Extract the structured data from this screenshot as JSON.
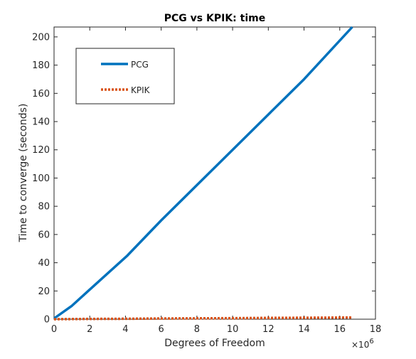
{
  "chart_data": {
    "type": "line",
    "title": "PCG vs KPIK: time",
    "xlabel": "Degrees of Freedom",
    "ylabel": "Time to converge (seconds)",
    "x_multiplier": "×10",
    "x_multiplier_exponent": "6",
    "xlim": [
      0,
      18
    ],
    "ylim": [
      0,
      207
    ],
    "x_ticks": [
      0,
      2,
      4,
      6,
      8,
      10,
      12,
      14,
      16,
      18
    ],
    "y_ticks": [
      0,
      20,
      40,
      60,
      80,
      100,
      120,
      140,
      160,
      180,
      200
    ],
    "grid": false,
    "legend_position": "top-left",
    "series": [
      {
        "name": "PCG",
        "color": "#0072BD",
        "style": "solid",
        "x": [
          0,
          1,
          2,
          4.1,
          6,
          8,
          10,
          12,
          14,
          16.7
        ],
        "y": [
          0.5,
          9.5,
          21,
          45,
          70,
          95,
          120,
          145,
          170,
          207
        ]
      },
      {
        "name": "KPIK",
        "color": "#D95319",
        "style": "dotted",
        "x": [
          0,
          1,
          2,
          4.1,
          6,
          8,
          10,
          12,
          14,
          16.7
        ],
        "y": [
          0,
          0.1,
          0.2,
          0.3,
          0.5,
          0.6,
          0.7,
          0.9,
          1.0,
          1.2
        ]
      }
    ]
  }
}
